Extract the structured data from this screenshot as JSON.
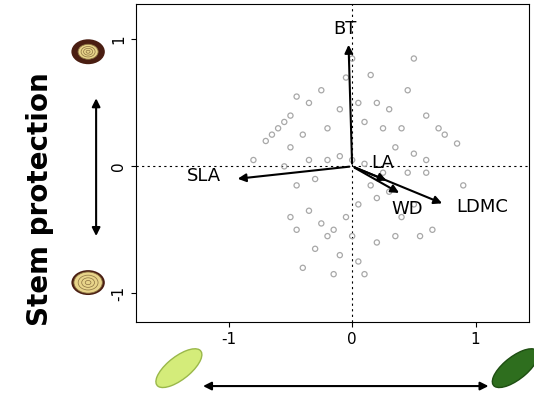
{
  "chart_data": {
    "type": "scatter",
    "ylabel": "Stem protection",
    "xlim": [
      -1.75,
      1.43
    ],
    "ylim": [
      -1.23,
      1.28
    ],
    "xticks": [
      -1,
      0,
      1
    ],
    "yticks": [
      -1,
      0,
      1
    ],
    "color": "#a8a8a8",
    "points": {
      "x": [
        -0.45,
        -0.35,
        -0.5,
        -0.25,
        -0.05,
        0.0,
        0.15,
        0.05,
        -0.1,
        0.2,
        0.3,
        0.45,
        0.5,
        0.6,
        0.7,
        0.85,
        0.4,
        0.25,
        -0.6,
        -0.65,
        -0.7,
        -0.5,
        -0.4,
        -0.2,
        0.1,
        0.35,
        0.5,
        0.6,
        -0.8,
        -0.55,
        -0.2,
        -0.1,
        0.0,
        0.1,
        0.25,
        0.45,
        0.6,
        -0.3,
        -0.45,
        -0.5,
        -0.35,
        -0.25,
        -0.15,
        0.05,
        0.2,
        0.3,
        0.5,
        0.65,
        0.35,
        0.2,
        0.0,
        -0.1,
        -0.3,
        -0.4,
        -0.15,
        0.05,
        0.1,
        -0.2,
        -0.05,
        0.4,
        0.55,
        -0.45,
        0.15,
        0.75,
        0.9,
        -0.35,
        -0.55
      ],
      "y": [
        0.55,
        0.5,
        0.4,
        0.6,
        0.7,
        0.85,
        0.72,
        0.5,
        0.45,
        0.5,
        0.45,
        0.6,
        0.85,
        0.4,
        0.3,
        0.18,
        0.3,
        0.3,
        0.3,
        0.25,
        0.2,
        0.15,
        0.25,
        0.3,
        0.35,
        0.15,
        0.1,
        0.05,
        0.05,
        0.0,
        0.05,
        0.08,
        0.05,
        0.02,
        -0.05,
        -0.05,
        -0.05,
        -0.1,
        -0.15,
        -0.4,
        -0.35,
        -0.45,
        -0.5,
        -0.3,
        -0.25,
        -0.2,
        -0.3,
        -0.5,
        -0.55,
        -0.6,
        -0.55,
        -0.7,
        -0.65,
        -0.8,
        -0.85,
        -0.75,
        -0.85,
        -0.55,
        -0.4,
        -0.4,
        -0.55,
        -0.5,
        -0.15,
        0.25,
        -0.15,
        0.05,
        0.35
      ]
    },
    "arrows": [
      {
        "name": "BT",
        "x": -0.03,
        "y": 0.98
      },
      {
        "name": "SLA",
        "x": -0.95,
        "y": -0.1
      },
      {
        "name": "LA",
        "x": 0.3,
        "y": -0.12
      },
      {
        "name": "WD",
        "x": 0.4,
        "y": -0.22
      },
      {
        "name": "LDMC",
        "x": 0.75,
        "y": -0.3
      }
    ]
  }
}
